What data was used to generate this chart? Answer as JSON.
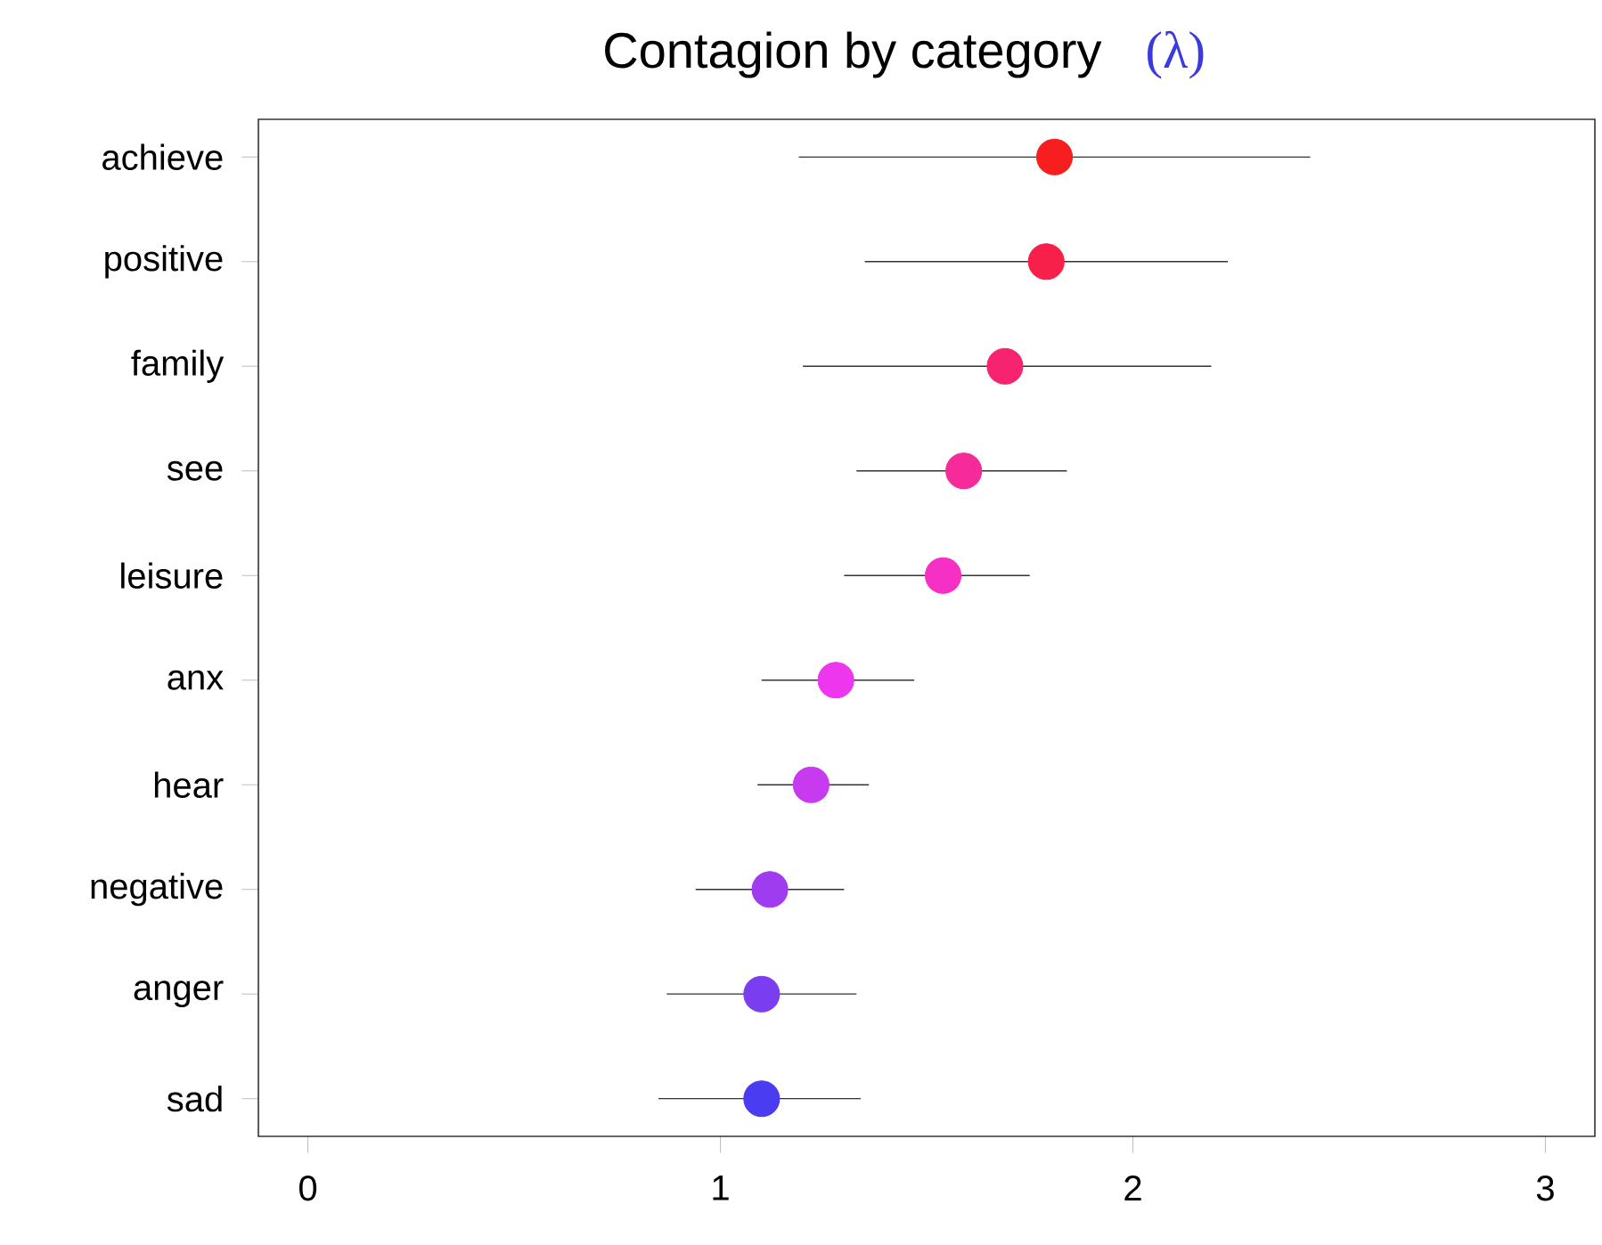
{
  "chart_data": {
    "type": "scatter",
    "orientation": "horizontal",
    "title": "Contagion by category",
    "annotations": [
      "(λ)"
    ],
    "categories": [
      "achieve",
      "positive",
      "family",
      "see",
      "leisure",
      "anx",
      "hear",
      "negative",
      "anger",
      "sad"
    ],
    "values": [
      1.81,
      1.79,
      1.69,
      1.59,
      1.54,
      1.28,
      1.22,
      1.12,
      1.1,
      1.1
    ],
    "errors": [
      [
        1.19,
        2.43
      ],
      [
        1.35,
        2.23
      ],
      [
        1.2,
        2.19
      ],
      [
        1.33,
        1.84
      ],
      [
        1.3,
        1.75
      ],
      [
        1.1,
        1.47
      ],
      [
        1.09,
        1.36
      ],
      [
        0.94,
        1.3
      ],
      [
        0.87,
        1.33
      ],
      [
        0.85,
        1.34
      ]
    ],
    "colors": [
      "#f61e1e",
      "#f6204a",
      "#f62470",
      "#f62a98",
      "#f630c4",
      "#ee36ee",
      "#c83af0",
      "#a03cf0",
      "#7a3ef0",
      "#4a3cf0"
    ],
    "xlim": [
      -0.12,
      3.12
    ],
    "xticks": [
      0,
      1,
      2,
      3
    ]
  }
}
